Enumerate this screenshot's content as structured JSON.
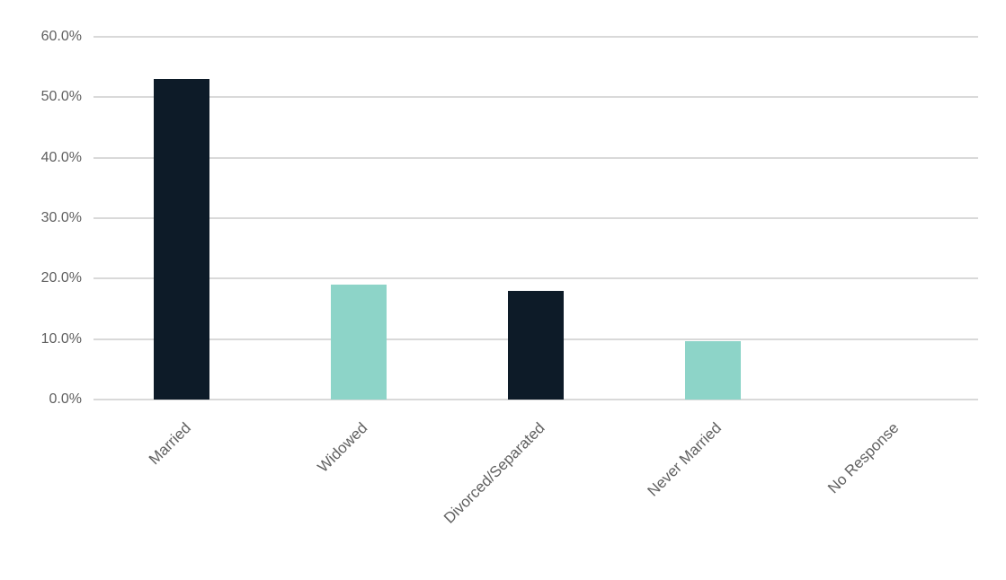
{
  "chart_data": {
    "type": "bar",
    "categories": [
      "Married",
      "Widowed",
      "Divorced/Separated",
      "Never Married",
      "No Response"
    ],
    "values": [
      53.0,
      19.0,
      18.0,
      9.7,
      0.0
    ],
    "bar_colors": [
      "#0d1b28",
      "#8dd4c8",
      "#0d1b28",
      "#8dd4c8",
      "#0d1b28"
    ],
    "title": "",
    "xlabel": "",
    "ylabel": "",
    "ylim": [
      0,
      60
    ],
    "ytick_step": 10,
    "ytick_labels": [
      "0.0%",
      "10.0%",
      "20.0%",
      "30.0%",
      "40.0%",
      "50.0%",
      "60.0%"
    ],
    "grid": true,
    "legend": false
  },
  "colors": {
    "dark_bar": "#0d1b28",
    "teal_bar": "#8dd4c8",
    "gridline": "#d9d9d9",
    "axis_text": "#606060",
    "background": "#ffffff"
  }
}
